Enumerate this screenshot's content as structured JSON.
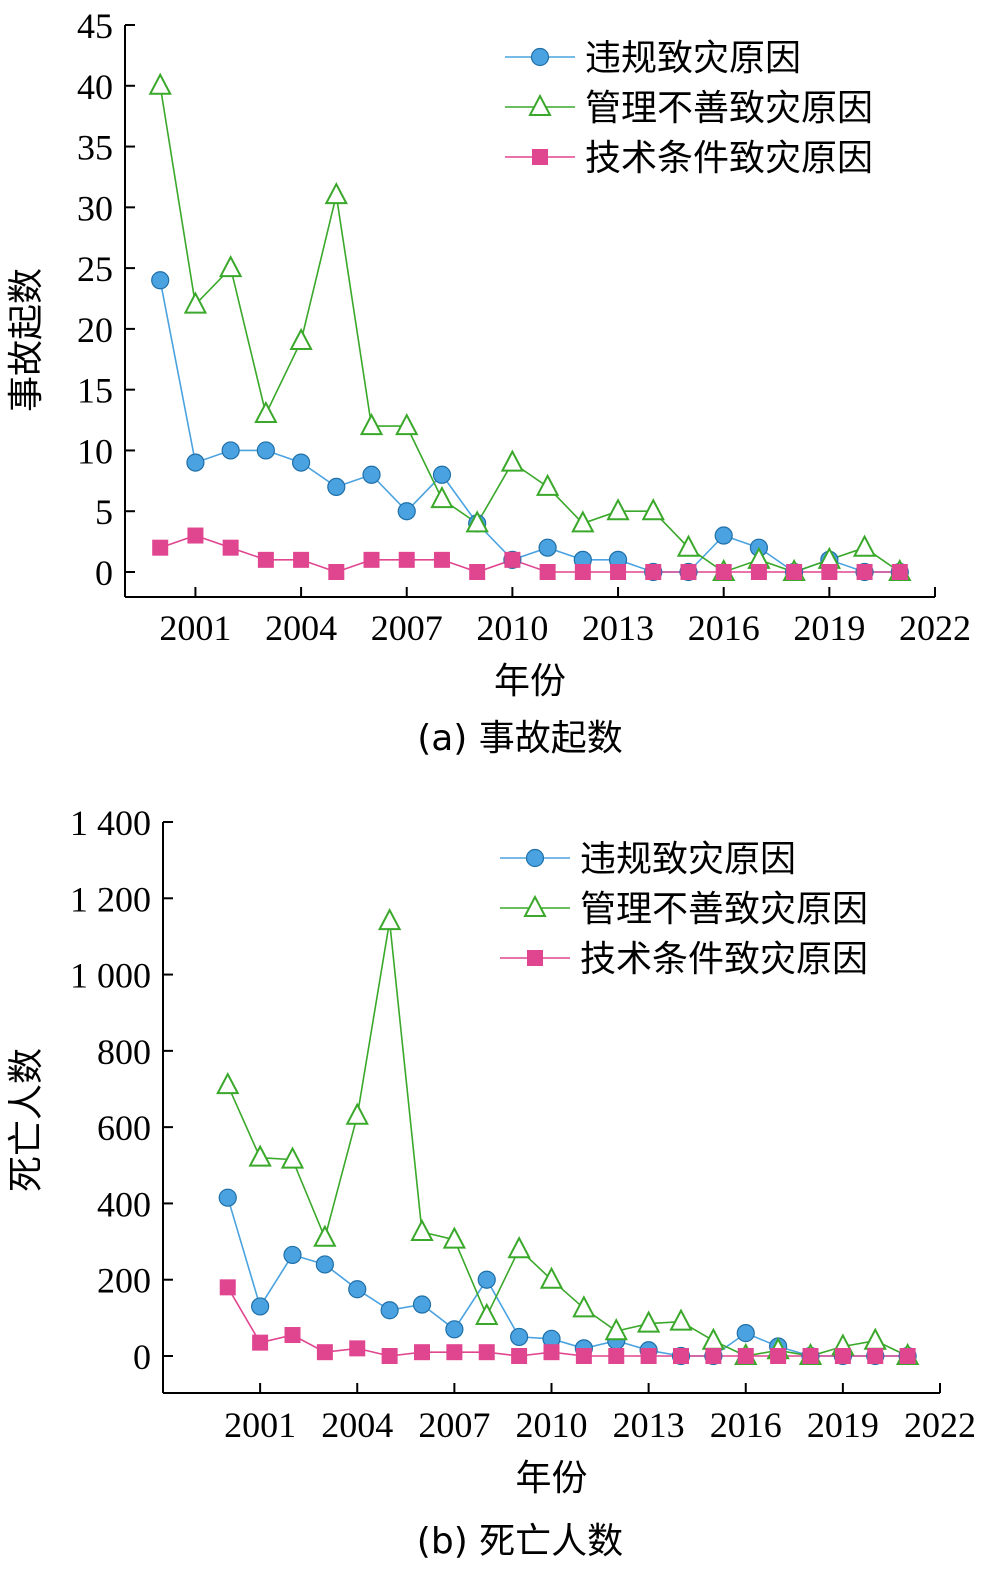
{
  "chart_data": [
    {
      "type": "line",
      "caption": "(a) 事故起数",
      "xlabel": "年份",
      "ylabel": "事故起数",
      "xlim": [
        1999,
        2022
      ],
      "ylim": [
        0,
        45
      ],
      "xticks": [
        2001,
        2004,
        2007,
        2010,
        2013,
        2016,
        2019,
        2022
      ],
      "xtick_labels": [
        "2001",
        "2004",
        "2007",
        "2010",
        "2013",
        "2016",
        "2019",
        "2022"
      ],
      "yticks": [
        0,
        5,
        10,
        15,
        20,
        25,
        30,
        35,
        40,
        45
      ],
      "ytick_labels": [
        "0",
        "5",
        "10",
        "15",
        "20",
        "25",
        "30",
        "35",
        "40",
        "45"
      ],
      "legend_position": "top-right",
      "series": [
        {
          "name": "违规致灾原因",
          "color": "#4aa3e0",
          "marker": "circle",
          "x": [
            2000,
            2001,
            2002,
            2003,
            2004,
            2005,
            2006,
            2007,
            2008,
            2009,
            2010,
            2011,
            2012,
            2013,
            2014,
            2015,
            2016,
            2017,
            2018,
            2019,
            2020,
            2021
          ],
          "values": [
            24,
            9,
            10,
            10,
            9,
            7,
            8,
            5,
            8,
            4,
            1,
            2,
            1,
            1,
            0,
            0,
            3,
            2,
            0,
            1,
            0,
            0
          ]
        },
        {
          "name": "管理不善致灾原因",
          "color": "#3aa82a",
          "marker": "triangle",
          "x": [
            2000,
            2001,
            2002,
            2003,
            2004,
            2005,
            2006,
            2007,
            2008,
            2009,
            2010,
            2011,
            2012,
            2013,
            2014,
            2015,
            2016,
            2017,
            2018,
            2019,
            2020,
            2021
          ],
          "values": [
            40,
            22,
            25,
            13,
            19,
            31,
            12,
            12,
            6,
            4,
            9,
            7,
            4,
            5,
            5,
            2,
            0,
            1,
            0,
            1,
            2,
            0
          ]
        },
        {
          "name": "技术条件致灾原因",
          "color": "#e0458f",
          "marker": "square",
          "x": [
            2000,
            2001,
            2002,
            2003,
            2004,
            2005,
            2006,
            2007,
            2008,
            2009,
            2010,
            2011,
            2012,
            2013,
            2014,
            2015,
            2016,
            2017,
            2018,
            2019,
            2020,
            2021
          ],
          "values": [
            2,
            3,
            2,
            1,
            1,
            0,
            1,
            1,
            1,
            0,
            1,
            0,
            0,
            0,
            0,
            0,
            0,
            0,
            0,
            0,
            0,
            0
          ]
        }
      ]
    },
    {
      "type": "line",
      "caption": "(b) 死亡人数",
      "xlabel": "年份",
      "ylabel": "死亡人数",
      "xlim": [
        1998,
        2022
      ],
      "ylim": [
        0,
        1400
      ],
      "xticks": [
        2001,
        2004,
        2007,
        2010,
        2013,
        2016,
        2019,
        2022
      ],
      "xtick_labels": [
        "2001",
        "2004",
        "2007",
        "2010",
        "2013",
        "2016",
        "2019",
        "2022"
      ],
      "yticks": [
        0,
        200,
        400,
        600,
        800,
        1000,
        1200,
        1400
      ],
      "ytick_labels": [
        "0",
        "200",
        "400",
        "600",
        "800",
        "1 000",
        "1 200",
        "1 400"
      ],
      "legend_position": "top-right",
      "series": [
        {
          "name": "违规致灾原因",
          "color": "#4aa3e0",
          "marker": "circle",
          "x": [
            2000,
            2001,
            2002,
            2003,
            2004,
            2005,
            2006,
            2007,
            2008,
            2009,
            2010,
            2011,
            2012,
            2013,
            2014,
            2015,
            2016,
            2017,
            2018,
            2019,
            2020,
            2021
          ],
          "values": [
            415,
            130,
            265,
            240,
            175,
            120,
            135,
            70,
            200,
            50,
            45,
            20,
            40,
            15,
            0,
            0,
            60,
            25,
            0,
            0,
            0,
            0
          ]
        },
        {
          "name": "管理不善致灾原因",
          "color": "#3aa82a",
          "marker": "triangle",
          "x": [
            2000,
            2001,
            2002,
            2003,
            2004,
            2005,
            2006,
            2007,
            2008,
            2009,
            2010,
            2011,
            2012,
            2013,
            2014,
            2015,
            2016,
            2017,
            2018,
            2019,
            2020,
            2021
          ],
          "values": [
            710,
            520,
            515,
            310,
            630,
            1140,
            325,
            305,
            105,
            280,
            200,
            125,
            65,
            85,
            90,
            40,
            0,
            15,
            0,
            25,
            40,
            0
          ]
        },
        {
          "name": "技术条件致灾原因",
          "color": "#e0458f",
          "marker": "square",
          "x": [
            2000,
            2001,
            2002,
            2003,
            2004,
            2005,
            2006,
            2007,
            2008,
            2009,
            2010,
            2011,
            2012,
            2013,
            2014,
            2015,
            2016,
            2017,
            2018,
            2019,
            2020,
            2021
          ],
          "values": [
            180,
            35,
            55,
            10,
            20,
            0,
            10,
            10,
            10,
            0,
            10,
            0,
            0,
            0,
            0,
            0,
            0,
            0,
            0,
            0,
            0,
            0
          ]
        }
      ]
    }
  ]
}
